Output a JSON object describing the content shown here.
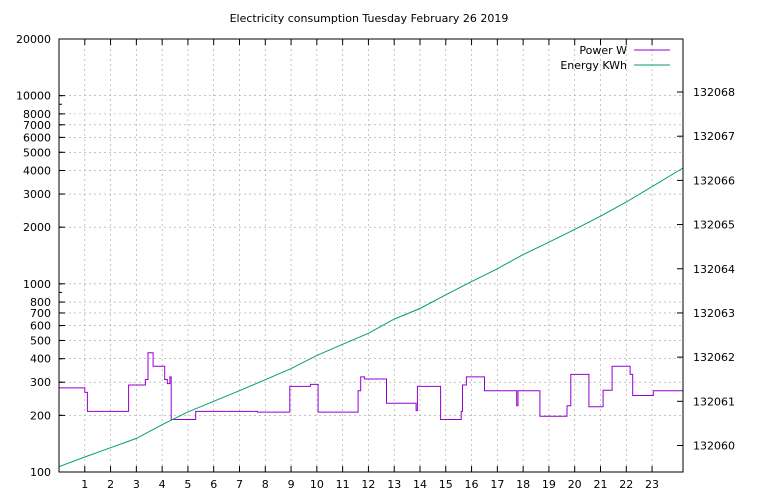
{
  "chart_data": {
    "type": "line",
    "title": "Electricity consumption Tuesday February 26 2019",
    "x_ticks": [
      1,
      2,
      3,
      4,
      5,
      6,
      7,
      8,
      9,
      10,
      11,
      12,
      13,
      14,
      15,
      16,
      17,
      18,
      19,
      20,
      21,
      22,
      23
    ],
    "xlim": [
      0,
      24.2
    ],
    "y_scale": "log",
    "ylim": [
      100,
      20000
    ],
    "y_ticks": [
      100,
      200,
      300,
      400,
      500,
      600,
      700,
      800,
      1000,
      2000,
      3000,
      4000,
      5000,
      6000,
      7000,
      8000,
      10000,
      20000
    ],
    "y2lim": [
      132059.4,
      132069.2
    ],
    "y2_ticks": [
      132060,
      132061,
      132062,
      132063,
      132064,
      132065,
      132066,
      132067,
      132068
    ],
    "grid": true,
    "legend_position": "top-right",
    "colors": {
      "power": "#9400d3",
      "energy": "#009e73"
    },
    "series": [
      {
        "name": "Power W",
        "axis": "y",
        "color": "#9400d3",
        "x": [
          0,
          1.0,
          1.0,
          1.1,
          1.1,
          2.7,
          2.7,
          3.35,
          3.35,
          3.45,
          3.45,
          3.65,
          3.65,
          4.1,
          4.1,
          4.2,
          4.2,
          4.3,
          4.3,
          4.35,
          4.35,
          5.3,
          5.3,
          7.7,
          7.7,
          8.95,
          8.95,
          9.75,
          9.75,
          10.05,
          10.05,
          11.6,
          11.6,
          11.7,
          11.7,
          11.85,
          11.85,
          12.7,
          12.7,
          13.85,
          13.85,
          13.9,
          13.9,
          14.8,
          14.8,
          15.6,
          15.6,
          15.65,
          15.65,
          15.8,
          15.8,
          16.5,
          16.5,
          17.75,
          17.75,
          17.8,
          17.8,
          18.65,
          18.65,
          19.7,
          19.7,
          19.85,
          19.85,
          20.55,
          20.55,
          21.1,
          21.1,
          21.45,
          21.45,
          22.15,
          22.15,
          22.25,
          22.25,
          23.05,
          23.05,
          24.2
        ],
        "y": [
          280,
          280,
          265,
          265,
          210,
          210,
          290,
          290,
          310,
          310,
          430,
          430,
          365,
          365,
          310,
          310,
          295,
          295,
          320,
          320,
          190,
          190,
          210,
          210,
          208,
          208,
          285,
          285,
          292,
          292,
          208,
          208,
          270,
          270,
          320,
          320,
          312,
          312,
          232,
          232,
          212,
          212,
          285,
          285,
          190,
          190,
          210,
          210,
          290,
          290,
          320,
          320,
          270,
          270,
          225,
          225,
          270,
          270,
          198,
          198,
          225,
          225,
          330,
          330,
          222,
          222,
          272,
          272,
          365,
          365,
          330,
          330,
          255,
          255,
          270,
          270
        ]
      },
      {
        "name": "Energy KWh",
        "axis": "y2",
        "color": "#009e73",
        "x": [
          0,
          1,
          2,
          3,
          4,
          5,
          6,
          7,
          8,
          9,
          10,
          11,
          12,
          13,
          14,
          15,
          16,
          17,
          18,
          19,
          20,
          21,
          22,
          23,
          24.2
        ],
        "y": [
          132059.52,
          132059.74,
          132059.95,
          132060.16,
          132060.47,
          132060.76,
          132061.0,
          132061.24,
          132061.49,
          132061.74,
          132062.04,
          132062.29,
          132062.54,
          132062.86,
          132063.1,
          132063.41,
          132063.71,
          132064.0,
          132064.32,
          132064.6,
          132064.89,
          132065.19,
          132065.51,
          132065.86,
          132066.28
        ]
      }
    ]
  }
}
